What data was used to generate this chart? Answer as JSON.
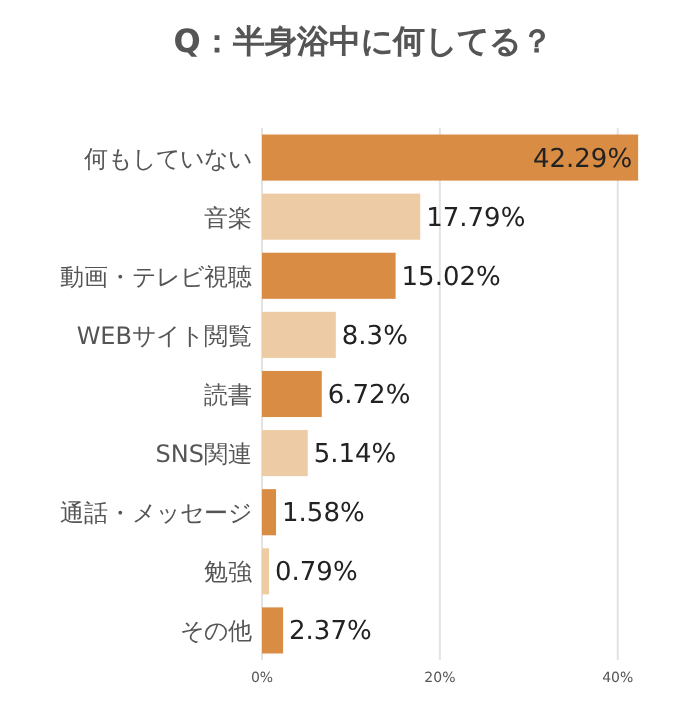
{
  "chart_data": {
    "type": "bar",
    "orientation": "horizontal",
    "title": "Q：半身浴中に何してる？",
    "categories": [
      "何もしていない",
      "音楽",
      "動画・テレビ視聴",
      "WEBサイト閲覧",
      "読書",
      "SNS関連",
      "通話・メッセージ",
      "勉強",
      "その他"
    ],
    "values": [
      42.29,
      17.79,
      15.02,
      8.3,
      6.72,
      5.14,
      1.58,
      0.79,
      2.37
    ],
    "colors": [
      "#d98c43",
      "#edcba5",
      "#d98c43",
      "#edcba5",
      "#d98c43",
      "#edcba5",
      "#d98c43",
      "#edcba5",
      "#d98c43"
    ],
    "value_labels": [
      "42.29%",
      "17.79%",
      "15.02%",
      "8.3%",
      "6.72%",
      "5.14%",
      "1.58%",
      "0.79%",
      "2.37%"
    ],
    "xlim": [
      0,
      42.5
    ],
    "xticks": [
      {
        "value": 0,
        "label": "0%"
      },
      {
        "value": 20,
        "label": "20%"
      },
      {
        "value": 40,
        "label": "40%"
      }
    ],
    "grid": "x"
  }
}
